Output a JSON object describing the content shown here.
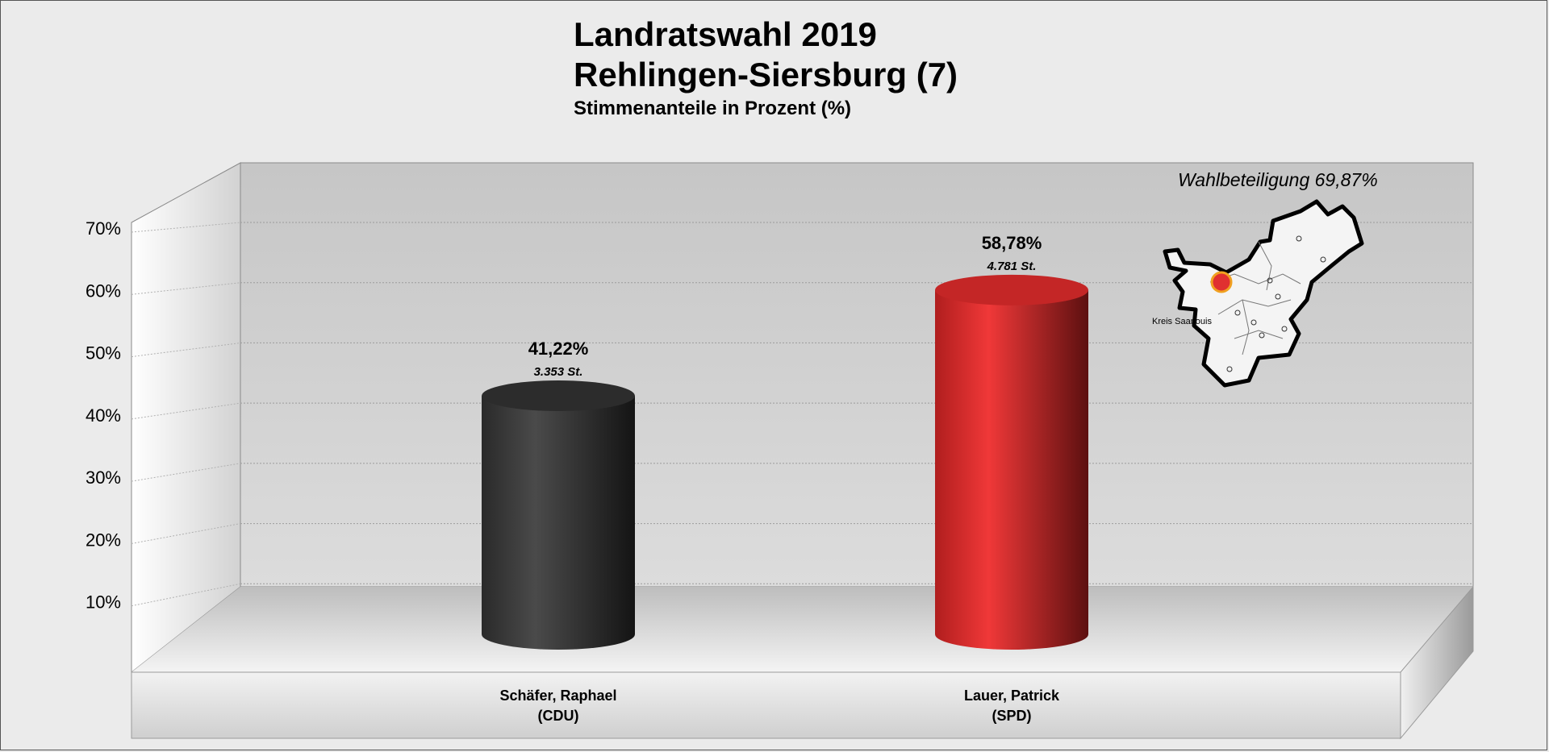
{
  "header": {
    "title_line1": "Landratswahl 2019",
    "title_line2": "Rehlingen-Siersburg (7)",
    "subtitle": "Stimmenanteile in Prozent (%)"
  },
  "annotations": {
    "turnout": "Wahlbeteiligung 69,87%",
    "map_label": "Kreis  Saarlouis"
  },
  "chart_data": {
    "type": "bar",
    "title": "Landratswahl 2019 Rehlingen-Siersburg (7)",
    "subtitle": "Stimmenanteile in Prozent (%)",
    "categories": [
      {
        "line1": "Schäfer, Raphael",
        "line2": "(CDU)"
      },
      {
        "line1": "Lauer, Patrick",
        "line2": "(SPD)"
      }
    ],
    "values": [
      41.22,
      58.78
    ],
    "value_labels": [
      "41,22%",
      "58,78%"
    ],
    "vote_labels": [
      "3.353 St.",
      "4.781 St."
    ],
    "colors": [
      "#3a3a3a",
      "#e03030"
    ],
    "ylim": [
      0,
      70
    ],
    "yticks": [
      {
        "value": 10,
        "label": "10%"
      },
      {
        "value": 20,
        "label": "20%"
      },
      {
        "value": 30,
        "label": "30%"
      },
      {
        "value": 40,
        "label": "40%"
      },
      {
        "value": 50,
        "label": "50%"
      },
      {
        "value": 60,
        "label": "60%"
      },
      {
        "value": 70,
        "label": "70%"
      }
    ],
    "grid": true,
    "legend": "none"
  }
}
